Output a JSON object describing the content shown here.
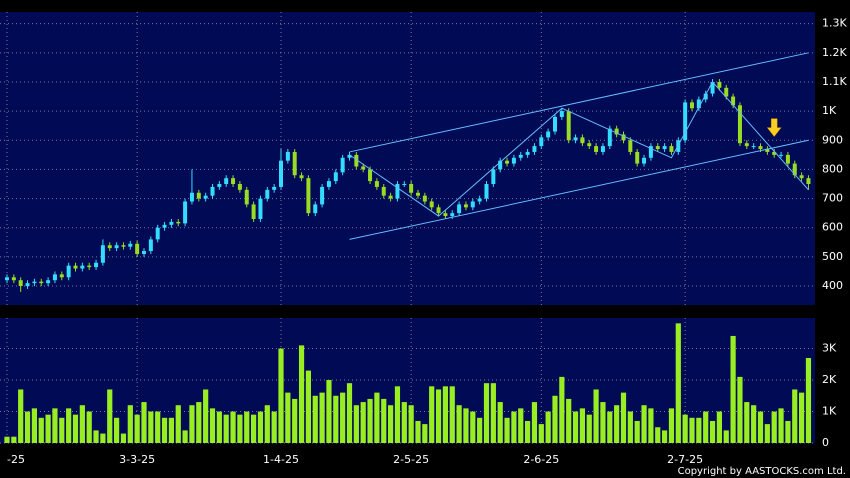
{
  "chart_data": [
    {
      "type": "candlestick",
      "categories": [
        "-25",
        null,
        null,
        null,
        null,
        null,
        null,
        null,
        null,
        null,
        null,
        null,
        null,
        null,
        null,
        null,
        null,
        null,
        null,
        "3-3-25",
        null,
        null,
        null,
        null,
        null,
        null,
        null,
        null,
        null,
        null,
        null,
        null,
        null,
        null,
        null,
        null,
        null,
        null,
        null,
        null,
        "1-4-25",
        null,
        null,
        null,
        null,
        null,
        null,
        null,
        null,
        null,
        null,
        null,
        null,
        null,
        null,
        null,
        null,
        null,
        null,
        "2-5-25",
        null,
        null,
        null,
        null,
        null,
        null,
        null,
        null,
        null,
        null,
        null,
        null,
        null,
        null,
        null,
        null,
        null,
        null,
        "2-6-25",
        null,
        null,
        null,
        null,
        null,
        null,
        null,
        null,
        null,
        null,
        null,
        null,
        null,
        null,
        null,
        null,
        null,
        null,
        null,
        null,
        "2-7-25",
        null,
        null,
        null,
        null,
        null,
        null,
        null,
        null,
        null,
        null,
        null,
        null,
        null,
        null,
        null,
        null,
        null,
        null
      ],
      "open": [
        420,
        430,
        420,
        400,
        410,
        415,
        410,
        420,
        440,
        430,
        470,
        460,
        470,
        465,
        480,
        540,
        530,
        540,
        535,
        545,
        510,
        520,
        560,
        600,
        610,
        620,
        615,
        690,
        720,
        700,
        710,
        740,
        750,
        770,
        750,
        730,
        680,
        630,
        700,
        730,
        740,
        830,
        860,
        780,
        770,
        650,
        680,
        740,
        760,
        790,
        840,
        850,
        810,
        800,
        760,
        740,
        710,
        700,
        750,
        750,
        720,
        710,
        690,
        670,
        650,
        640,
        650,
        680,
        670,
        690,
        700,
        750,
        800,
        830,
        820,
        840,
        850,
        860,
        880,
        910,
        930,
        980,
        1000,
        900,
        910,
        890,
        880,
        860,
        880,
        940,
        920,
        900,
        860,
        820,
        840,
        880,
        870,
        880,
        860,
        900,
        1030,
        1010,
        1040,
        1060,
        1100,
        1080,
        1050,
        1020,
        890,
        880,
        880,
        870,
        860,
        850,
        850,
        820,
        780,
        770
      ],
      "high": [
        440,
        440,
        430,
        420,
        425,
        425,
        430,
        450,
        450,
        480,
        480,
        480,
        480,
        490,
        560,
        550,
        550,
        550,
        555,
        555,
        530,
        570,
        610,
        620,
        630,
        630,
        700,
        800,
        730,
        720,
        750,
        760,
        780,
        780,
        760,
        740,
        690,
        710,
        740,
        750,
        870,
        870,
        870,
        790,
        780,
        690,
        750,
        770,
        800,
        850,
        860,
        860,
        820,
        810,
        770,
        750,
        720,
        760,
        760,
        760,
        730,
        720,
        700,
        680,
        660,
        660,
        690,
        690,
        700,
        710,
        760,
        810,
        840,
        840,
        850,
        860,
        870,
        890,
        920,
        940,
        990,
        1010,
        1010,
        920,
        920,
        900,
        890,
        890,
        950,
        950,
        930,
        910,
        870,
        850,
        890,
        890,
        890,
        890,
        910,
        1040,
        1040,
        1050,
        1070,
        1110,
        1110,
        1090,
        1060,
        1030,
        900,
        890,
        890,
        880,
        870,
        860,
        860,
        830,
        790,
        780
      ],
      "low": [
        410,
        410,
        380,
        390,
        400,
        400,
        400,
        410,
        420,
        420,
        450,
        450,
        455,
        455,
        470,
        520,
        520,
        525,
        525,
        500,
        500,
        510,
        550,
        590,
        600,
        605,
        605,
        680,
        690,
        690,
        700,
        730,
        740,
        740,
        720,
        670,
        620,
        620,
        690,
        720,
        730,
        820,
        770,
        760,
        640,
        640,
        670,
        730,
        750,
        780,
        830,
        800,
        790,
        750,
        730,
        700,
        690,
        690,
        740,
        710,
        700,
        680,
        660,
        640,
        630,
        630,
        640,
        660,
        660,
        680,
        690,
        740,
        790,
        810,
        810,
        830,
        840,
        850,
        870,
        900,
        920,
        970,
        890,
        890,
        880,
        870,
        850,
        850,
        870,
        910,
        890,
        850,
        810,
        810,
        830,
        860,
        860,
        850,
        850,
        890,
        1000,
        1000,
        1030,
        1050,
        1070,
        1040,
        1010,
        880,
        870,
        870,
        860,
        850,
        840,
        840,
        810,
        770,
        760,
        730
      ],
      "close": [
        430,
        420,
        400,
        410,
        415,
        410,
        420,
        440,
        430,
        470,
        460,
        470,
        465,
        480,
        540,
        530,
        540,
        535,
        545,
        510,
        520,
        560,
        600,
        610,
        620,
        615,
        690,
        720,
        700,
        710,
        740,
        750,
        770,
        750,
        730,
        680,
        630,
        700,
        730,
        740,
        830,
        860,
        780,
        770,
        650,
        680,
        740,
        760,
        790,
        840,
        850,
        810,
        800,
        760,
        740,
        710,
        700,
        750,
        750,
        720,
        710,
        690,
        670,
        650,
        640,
        650,
        680,
        670,
        690,
        700,
        750,
        800,
        830,
        820,
        840,
        850,
        860,
        880,
        910,
        930,
        980,
        1000,
        900,
        910,
        890,
        880,
        860,
        880,
        940,
        920,
        900,
        860,
        820,
        840,
        880,
        870,
        880,
        860,
        900,
        1030,
        1010,
        1040,
        1060,
        1100,
        1080,
        1050,
        1020,
        890,
        880,
        880,
        870,
        860,
        850,
        850,
        820,
        780,
        770,
        750
      ],
      "up_color": "#33ddff",
      "down_color": "#99dd22",
      "ylim": [
        335,
        1340
      ],
      "yticks": [
        400,
        500,
        600,
        700,
        800,
        900,
        {
          "value": 1000,
          "label": "1K"
        },
        {
          "value": 1100,
          "label": "1.1K"
        },
        {
          "value": 1200,
          "label": "1.2K"
        },
        {
          "value": 1300,
          "label": "1.3K"
        }
      ],
      "grid": true,
      "trend_lines": [
        {
          "color": "#66bbff",
          "points": [
            [
              50,
              860
            ],
            [
              117,
              1200
            ]
          ]
        },
        {
          "color": "#66bbff",
          "points": [
            [
              50,
              560
            ],
            [
              117,
              900
            ]
          ]
        },
        {
          "color": "#66bbff",
          "points": [
            [
              50,
              850
            ],
            [
              63,
              640
            ],
            [
              81,
              1010
            ],
            [
              97,
              840
            ],
            [
              103,
              1100
            ],
            [
              117,
              730
            ]
          ]
        }
      ],
      "arrow": {
        "index": 112,
        "value": 940,
        "color": "#ffcc22"
      }
    },
    {
      "type": "bar",
      "values": [
        200,
        200,
        1700,
        1000,
        1100,
        800,
        900,
        1100,
        800,
        1100,
        900,
        1200,
        1000,
        400,
        300,
        1700,
        800,
        300,
        1200,
        900,
        1300,
        1000,
        1000,
        800,
        800,
        1200,
        400,
        1200,
        1300,
        1700,
        1100,
        1000,
        900,
        1000,
        900,
        1000,
        900,
        1000,
        1200,
        1000,
        3000,
        1600,
        1400,
        3100,
        2300,
        1500,
        1600,
        2000,
        1500,
        1600,
        1900,
        1200,
        1300,
        1400,
        1600,
        1400,
        1200,
        1800,
        1300,
        1200,
        700,
        600,
        1800,
        1700,
        1800,
        1800,
        1200,
        1100,
        1000,
        800,
        1900,
        1900,
        1300,
        800,
        1000,
        1100,
        700,
        1300,
        600,
        1000,
        1500,
        2100,
        1400,
        1000,
        1100,
        900,
        1700,
        1300,
        1000,
        1200,
        1600,
        1000,
        700,
        1200,
        1100,
        500,
        400,
        1100,
        3800,
        900,
        800,
        800,
        1000,
        700,
        1000,
        400,
        3400,
        2100,
        1300,
        1200,
        1000,
        600,
        1000,
        1100,
        700,
        1700,
        1600,
        2700
      ],
      "color": "#99ee22",
      "ylim": [
        0,
        3970
      ],
      "yticks": [
        0,
        {
          "value": 1000,
          "label": "1K"
        },
        {
          "value": 2000,
          "label": "2K"
        },
        {
          "value": 3000,
          "label": "3K"
        }
      ],
      "grid": true
    }
  ],
  "copyright": "Copyright by AASTOCKS.com Ltd."
}
